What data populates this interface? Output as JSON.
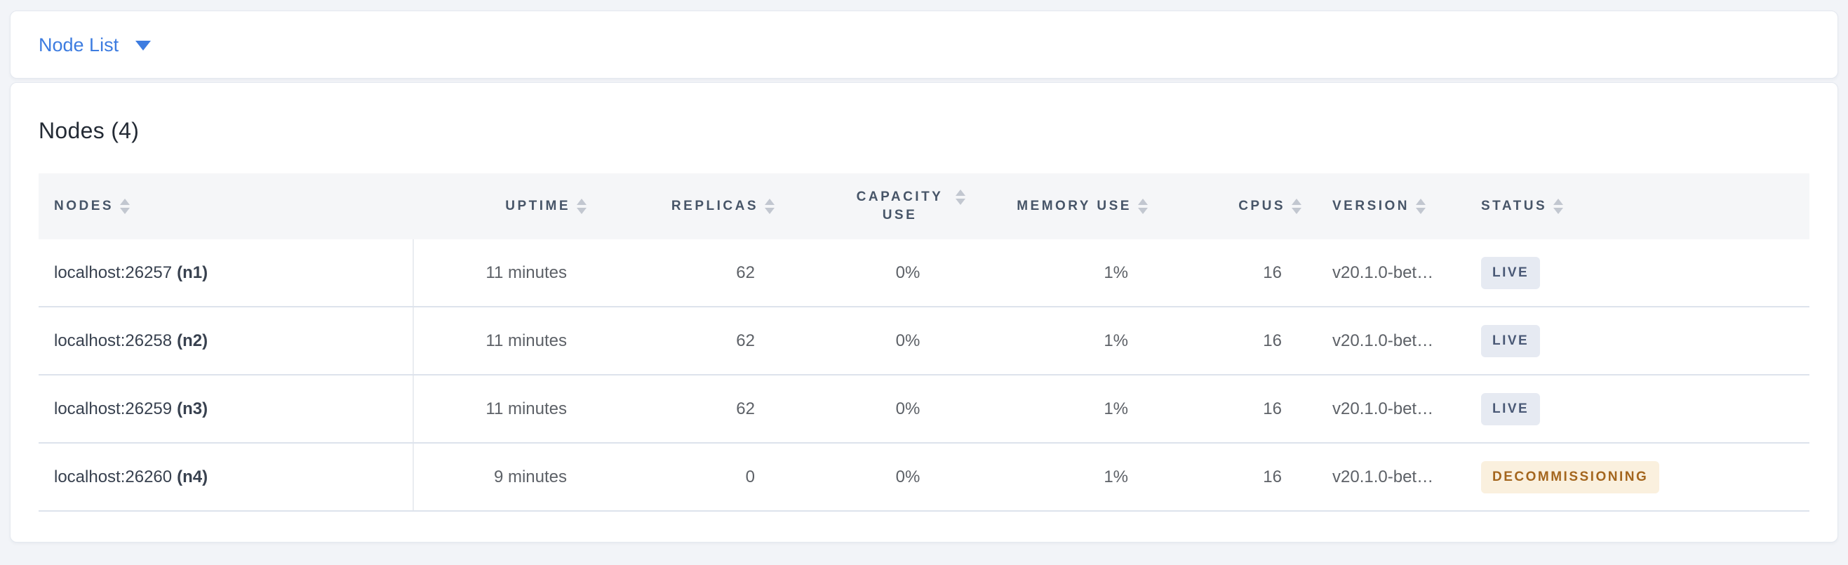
{
  "selector": {
    "label": "Node List"
  },
  "heading": "Nodes (4)",
  "table": {
    "headers": {
      "nodes": "NODES",
      "uptime": "UPTIME",
      "replicas": "REPLICAS",
      "capacity": "CAPACITY USE",
      "memory": "MEMORY USE",
      "cpus": "CPUS",
      "version": "VERSION",
      "status": "STATUS"
    },
    "rows": [
      {
        "address": "localhost:26257",
        "node_id": "(n1)",
        "uptime": "11 minutes",
        "replicas": "62",
        "capacity_use": "0%",
        "memory_use": "1%",
        "cpus": "16",
        "version": "v20.1.0-bet…",
        "status": "LIVE"
      },
      {
        "address": "localhost:26258",
        "node_id": "(n2)",
        "uptime": "11 minutes",
        "replicas": "62",
        "capacity_use": "0%",
        "memory_use": "1%",
        "cpus": "16",
        "version": "v20.1.0-bet…",
        "status": "LIVE"
      },
      {
        "address": "localhost:26259",
        "node_id": "(n3)",
        "uptime": "11 minutes",
        "replicas": "62",
        "capacity_use": "0%",
        "memory_use": "1%",
        "cpus": "16",
        "version": "v20.1.0-bet…",
        "status": "LIVE"
      },
      {
        "address": "localhost:26260",
        "node_id": "(n4)",
        "uptime": "9 minutes",
        "replicas": "0",
        "capacity_use": "0%",
        "memory_use": "1%",
        "cpus": "16",
        "version": "v20.1.0-bet…",
        "status": "DECOMMISSIONING"
      }
    ]
  },
  "colors": {
    "accent_blue": "#3d7ce0",
    "header_text": "#475568",
    "live_badge_bg": "#e6eaf2",
    "live_badge_text": "#4a5976",
    "decommissioning_badge_bg": "#faf0de",
    "decommissioning_badge_text": "#a4661e"
  }
}
